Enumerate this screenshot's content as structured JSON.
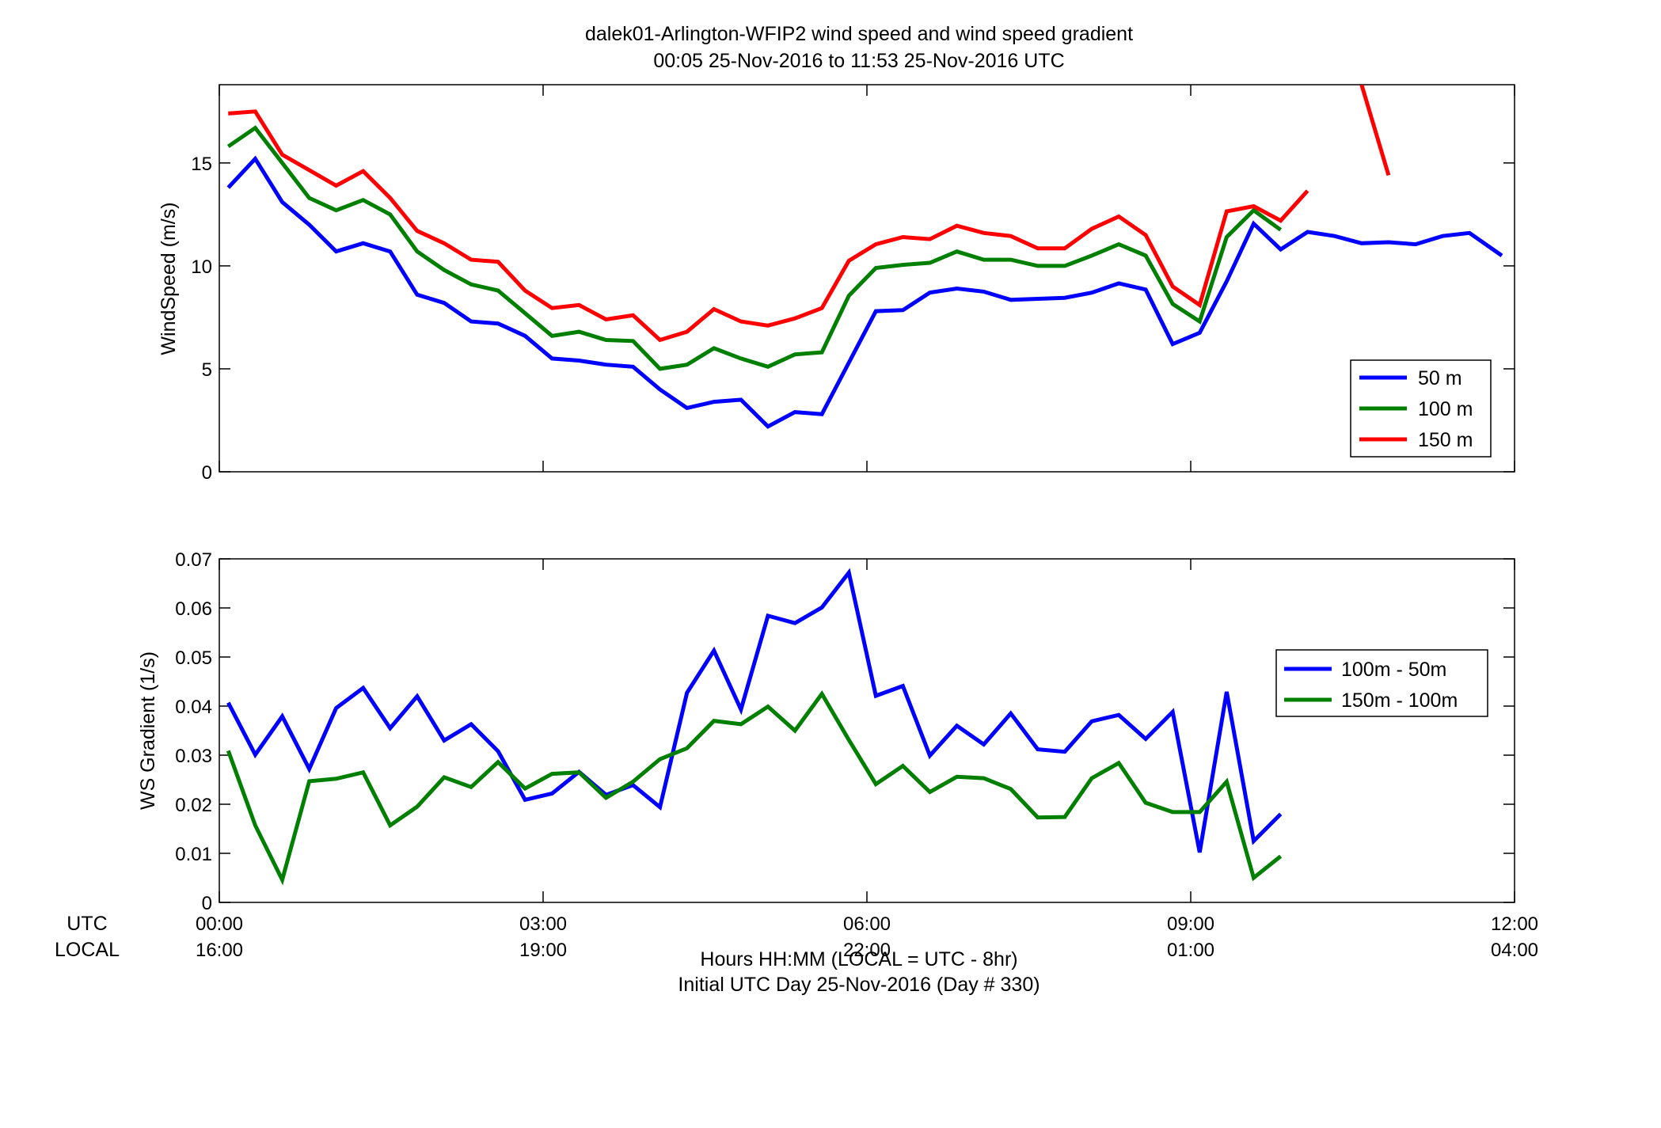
{
  "title": {
    "line1": "dalek01-Arlington-WFIP2  wind speed and wind speed gradient",
    "line2": "00:05 25-Nov-2016 to 11:53 25-Nov-2016  UTC"
  },
  "footer": {
    "utc_label": "UTC",
    "local_label": "LOCAL",
    "xlabel_line1": "Hours HH:MM  (LOCAL = UTC - 8hr)",
    "xlabel_line2": "Initial UTC Day 25-Nov-2016 (Day # 330)"
  },
  "x_ticks": {
    "utc": [
      "00:00",
      "03:00",
      "06:00",
      "09:00",
      "12:00"
    ],
    "local": [
      "16:00",
      "19:00",
      "22:00",
      "01:00",
      "04:00"
    ]
  },
  "chart_data": [
    {
      "type": "line",
      "ylabel": "WindSpeed (m/s)",
      "xlim": [
        0,
        12
      ],
      "ylim": [
        0,
        18.8
      ],
      "yticks": [
        "0",
        "5",
        "10",
        "15"
      ],
      "grid": false,
      "legend_position": "lower-right",
      "x_units": "hours UTC",
      "series": [
        {
          "name": "50 m",
          "color": "#0000ff",
          "x": [
            0.083,
            0.333,
            0.583,
            0.833,
            1.083,
            1.333,
            1.583,
            1.833,
            2.083,
            2.333,
            2.583,
            2.833,
            3.083,
            3.333,
            3.583,
            3.833,
            4.083,
            4.333,
            4.583,
            4.833,
            5.083,
            5.333,
            5.583,
            5.833,
            6.083,
            6.333,
            6.583,
            6.833,
            7.083,
            7.333,
            7.583,
            7.833,
            8.083,
            8.333,
            8.583,
            8.833,
            9.083,
            9.333,
            9.583,
            9.833,
            10.083,
            10.333,
            10.583,
            10.833,
            11.083,
            11.333,
            11.583,
            11.883
          ],
          "values": [
            13.8,
            15.2,
            13.1,
            12.0,
            10.7,
            11.1,
            10.7,
            8.6,
            8.2,
            7.3,
            7.2,
            6.6,
            5.5,
            5.4,
            5.2,
            5.1,
            4.0,
            3.1,
            3.4,
            3.5,
            2.2,
            2.9,
            2.8,
            5.3,
            7.8,
            7.85,
            8.7,
            8.9,
            8.75,
            8.35,
            8.4,
            8.45,
            8.7,
            9.15,
            8.85,
            6.2,
            6.75,
            9.25,
            12.05,
            10.8,
            11.65,
            11.45,
            11.1,
            11.15,
            11.05,
            11.45,
            11.6,
            10.5
          ]
        },
        {
          "name": "100 m",
          "color": "#007f00",
          "x": [
            0.083,
            0.333,
            0.583,
            0.833,
            1.083,
            1.333,
            1.583,
            1.833,
            2.083,
            2.333,
            2.583,
            2.833,
            3.083,
            3.333,
            3.583,
            3.833,
            4.083,
            4.333,
            4.583,
            4.833,
            5.083,
            5.333,
            5.583,
            5.833,
            6.083,
            6.333,
            6.583,
            6.833,
            7.083,
            7.333,
            7.583,
            7.833,
            8.083,
            8.333,
            8.583,
            8.833,
            9.083,
            9.333,
            9.583,
            9.833
          ],
          "values": [
            15.8,
            16.7,
            15.0,
            13.3,
            12.7,
            13.2,
            12.5,
            10.7,
            9.8,
            9.1,
            8.8,
            7.7,
            6.6,
            6.8,
            6.4,
            6.35,
            5.0,
            5.2,
            6.0,
            5.5,
            5.1,
            5.7,
            5.8,
            8.55,
            9.9,
            10.05,
            10.15,
            10.7,
            10.3,
            10.3,
            10.0,
            10.0,
            10.5,
            11.05,
            10.5,
            8.15,
            7.3,
            11.4,
            12.7,
            11.75
          ]
        },
        {
          "name": "150 m",
          "color": "#ff0000",
          "x": [
            0.083,
            0.333,
            0.583,
            0.833,
            1.083,
            1.333,
            1.583,
            1.833,
            2.083,
            2.333,
            2.583,
            2.833,
            3.083,
            3.333,
            3.583,
            3.833,
            4.083,
            4.333,
            4.583,
            4.833,
            5.083,
            5.333,
            5.583,
            5.833,
            6.083,
            6.333,
            6.583,
            6.833,
            7.083,
            7.333,
            7.583,
            7.833,
            8.083,
            8.333,
            8.583,
            8.833,
            9.083,
            9.333,
            9.583,
            9.833,
            10.083,
            null,
            10.583,
            10.833
          ],
          "values": [
            17.4,
            17.5,
            15.4,
            14.65,
            13.9,
            14.6,
            13.3,
            11.7,
            11.1,
            10.3,
            10.2,
            8.8,
            7.95,
            8.1,
            7.4,
            7.6,
            6.4,
            6.8,
            7.9,
            7.3,
            7.1,
            7.45,
            7.95,
            10.25,
            11.05,
            11.4,
            11.3,
            11.95,
            11.6,
            11.45,
            10.85,
            10.85,
            11.8,
            12.4,
            11.5,
            9.0,
            8.1,
            12.65,
            12.9,
            12.2,
            13.65,
            null,
            18.8,
            14.4
          ]
        }
      ]
    },
    {
      "type": "line",
      "ylabel": "WS Gradient (1/s)",
      "xlim": [
        0,
        12
      ],
      "ylim": [
        0,
        0.07
      ],
      "yticks": [
        "0",
        "0.01",
        "0.02",
        "0.03",
        "0.04",
        "0.05",
        "0.06",
        "0.07"
      ],
      "grid": false,
      "legend_position": "upper-right",
      "x_units": "hours UTC",
      "series": [
        {
          "name": "100m - 50m",
          "color": "#0000ff",
          "x": [
            0.083,
            0.333,
            0.583,
            0.833,
            1.083,
            1.333,
            1.583,
            1.833,
            2.083,
            2.333,
            2.583,
            2.833,
            3.083,
            3.333,
            3.583,
            3.833,
            4.083,
            4.333,
            4.583,
            4.833,
            5.083,
            5.333,
            5.583,
            5.833,
            6.083,
            6.333,
            6.583,
            6.833,
            7.083,
            7.333,
            7.583,
            7.833,
            8.083,
            8.333,
            8.583,
            8.833,
            9.083,
            9.333,
            9.583,
            9.833
          ],
          "values": [
            0.0407,
            0.0301,
            0.0379,
            0.0272,
            0.0396,
            0.0437,
            0.0355,
            0.042,
            0.033,
            0.0363,
            0.0308,
            0.0209,
            0.0222,
            0.0266,
            0.0219,
            0.0239,
            0.0194,
            0.0427,
            0.0513,
            0.0393,
            0.0584,
            0.0569,
            0.0601,
            0.0672,
            0.0421,
            0.0441,
            0.0299,
            0.036,
            0.0322,
            0.0385,
            0.0312,
            0.0307,
            0.0369,
            0.0382,
            0.0333,
            0.0388,
            0.0102,
            0.0429,
            0.0125,
            0.018
          ]
        },
        {
          "name": "150m - 100m",
          "color": "#007f00",
          "x": [
            0.083,
            0.333,
            0.583,
            0.833,
            1.083,
            1.333,
            1.583,
            1.833,
            2.083,
            2.333,
            2.583,
            2.833,
            3.083,
            3.333,
            3.583,
            3.833,
            4.083,
            4.333,
            4.583,
            4.833,
            5.083,
            5.333,
            5.583,
            5.833,
            6.083,
            6.333,
            6.583,
            6.833,
            7.083,
            7.333,
            7.583,
            7.833,
            8.083,
            8.333,
            8.583,
            8.833,
            9.083,
            9.333,
            9.583,
            9.833
          ],
          "values": [
            0.0309,
            0.0157,
            0.0046,
            0.0247,
            0.0252,
            0.0265,
            0.0157,
            0.0195,
            0.0255,
            0.0235,
            0.0286,
            0.0232,
            0.0262,
            0.0265,
            0.0213,
            0.0246,
            0.0292,
            0.0314,
            0.037,
            0.0363,
            0.0399,
            0.035,
            0.0425,
            0.0331,
            0.0241,
            0.0278,
            0.0225,
            0.0256,
            0.0253,
            0.0231,
            0.0173,
            0.0174,
            0.0253,
            0.0284,
            0.0203,
            0.0184,
            0.0184,
            0.0246,
            0.005,
            0.0094
          ]
        }
      ]
    }
  ]
}
